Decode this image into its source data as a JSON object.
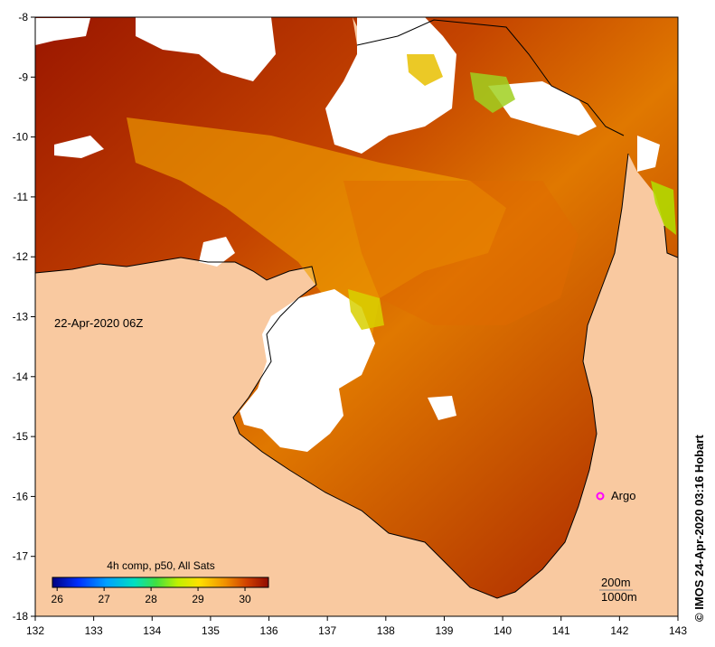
{
  "map": {
    "date_label": "22-Apr-2020 06Z",
    "credit": "© IMOS 24-Apr-2020 03:16 Hobart",
    "x_ticks": [
      "132",
      "133",
      "134",
      "135",
      "136",
      "137",
      "138",
      "139",
      "140",
      "141",
      "142",
      "143"
    ],
    "y_ticks": [
      "-8",
      "-9",
      "-10",
      "-11",
      "-12",
      "-13",
      "-14",
      "-15",
      "-16",
      "-17",
      "-18"
    ],
    "x_range": [
      132,
      143
    ],
    "y_range": [
      -18,
      -8
    ],
    "colorbar": {
      "title": "4h comp, p50, All Sats",
      "ticks": [
        "26",
        "27",
        "28",
        "29",
        "30"
      ],
      "range": [
        25.9,
        30.5
      ]
    },
    "argo": {
      "label": "Argo",
      "lon": 141.7,
      "lat": -16.0
    },
    "contour_labels": [
      "200m",
      "1000m"
    ],
    "colors": {
      "land": "#f9c9a0",
      "warm_dark": "#a41a00",
      "warm_mid": "#d05000",
      "warm_light": "#f5a800",
      "cloud": "#ffffff",
      "argo": "#ff00ff"
    }
  }
}
